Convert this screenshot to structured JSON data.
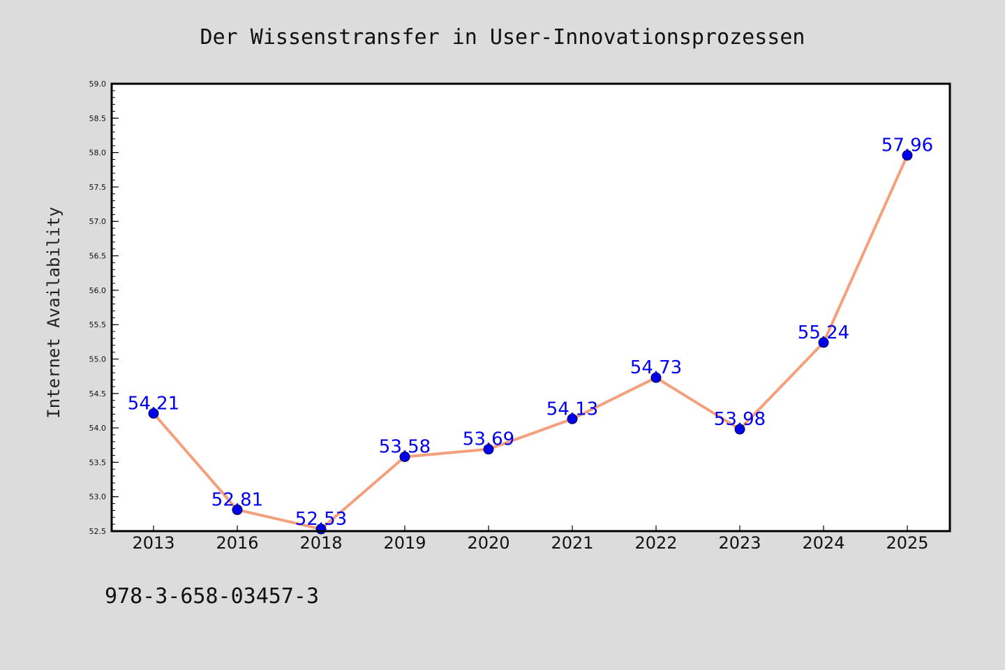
{
  "chart_data": {
    "type": "line",
    "title": "Der Wissenstransfer in User-Innovationsprozessen",
    "xlabel": "",
    "ylabel": "Internet Availability",
    "categories": [
      "2013",
      "2016",
      "2018",
      "2019",
      "2020",
      "2021",
      "2022",
      "2023",
      "2024",
      "2025"
    ],
    "series": [
      {
        "values": [
          54.21,
          52.81,
          52.53,
          53.58,
          53.69,
          54.13,
          54.73,
          53.98,
          55.24,
          57.96
        ]
      }
    ],
    "data_labels": [
      "54.21",
      "52.81",
      "52.53",
      "53.58",
      "53.69",
      "54.13",
      "54.73",
      "53.98",
      "55.24",
      "57.96"
    ],
    "ylim": [
      52.5,
      59.0
    ],
    "yticks": [
      "52.5",
      "53.0",
      "53.5",
      "54.0",
      "54.5",
      "55.0",
      "55.5",
      "56.0",
      "56.5",
      "57.0",
      "57.5",
      "58.0",
      "58.5",
      "59.0"
    ],
    "grid": false,
    "legend": "none",
    "colors": {
      "line": "#f4a07c",
      "marker": "#0000ee",
      "label": "#0000ee",
      "background": "#dcdcdc",
      "plot_background": "#ffffff"
    }
  },
  "footer": {
    "text": "978-3-658-03457-3"
  }
}
